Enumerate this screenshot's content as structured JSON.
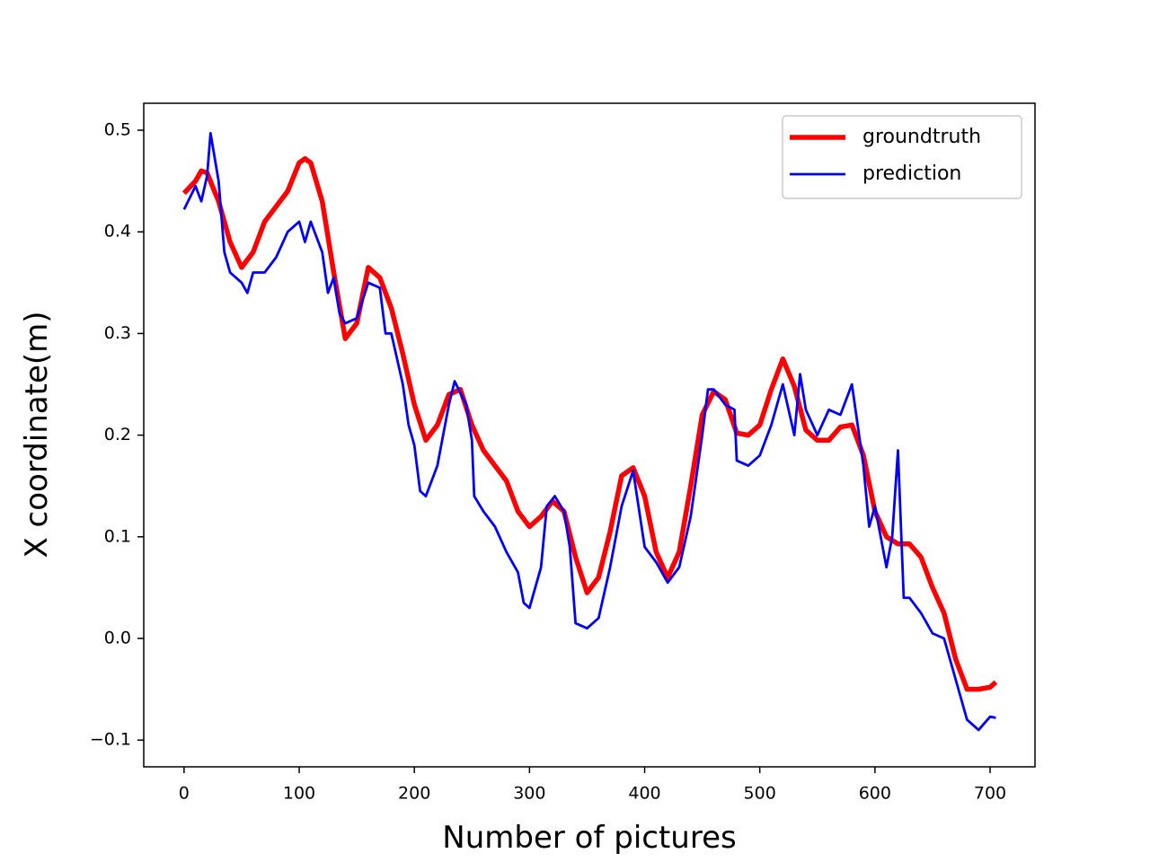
{
  "chart_data": {
    "type": "line",
    "xlabel": "Number of pictures",
    "ylabel": "X coordinate(m)",
    "xlim": [
      -35,
      739
    ],
    "ylim": [
      -0.1263,
      0.5265
    ],
    "xticks": [
      0,
      100,
      200,
      300,
      400,
      500,
      600,
      700
    ],
    "yticks": [
      {
        "value": -0.1,
        "label": "−0.1"
      },
      {
        "value": 0,
        "label": "0.0"
      },
      0.1,
      0.2,
      0.3,
      0.4,
      0.5
    ],
    "legend": "upper right",
    "series": [
      {
        "name": "groundtruth",
        "color": "#ff0000",
        "x": [
          0,
          10,
          15,
          20,
          30,
          40,
          50,
          60,
          70,
          80,
          90,
          100,
          105,
          110,
          120,
          130,
          140,
          150,
          160,
          170,
          180,
          190,
          200,
          210,
          220,
          230,
          240,
          250,
          260,
          270,
          280,
          290,
          300,
          310,
          320,
          330,
          340,
          350,
          360,
          370,
          380,
          390,
          400,
          410,
          420,
          430,
          440,
          450,
          460,
          470,
          480,
          490,
          500,
          510,
          520,
          530,
          540,
          550,
          560,
          570,
          580,
          590,
          600,
          610,
          620,
          630,
          640,
          650,
          660,
          670,
          680,
          690,
          700,
          705
        ],
        "values": [
          0.438,
          0.45,
          0.46,
          0.458,
          0.43,
          0.39,
          0.365,
          0.38,
          0.41,
          0.425,
          0.44,
          0.468,
          0.472,
          0.468,
          0.43,
          0.36,
          0.295,
          0.31,
          0.365,
          0.355,
          0.325,
          0.28,
          0.23,
          0.195,
          0.21,
          0.24,
          0.245,
          0.21,
          0.185,
          0.17,
          0.155,
          0.125,
          0.11,
          0.12,
          0.135,
          0.125,
          0.08,
          0.045,
          0.06,
          0.105,
          0.16,
          0.168,
          0.14,
          0.085,
          0.06,
          0.085,
          0.15,
          0.22,
          0.243,
          0.235,
          0.202,
          0.2,
          0.21,
          0.245,
          0.275,
          0.248,
          0.205,
          0.195,
          0.195,
          0.208,
          0.21,
          0.18,
          0.125,
          0.1,
          0.093,
          0.093,
          0.08,
          0.05,
          0.025,
          -0.02,
          -0.05,
          -0.05,
          -0.048,
          -0.043
        ]
      },
      {
        "name": "prediction",
        "color": "#0000ff",
        "x": [
          0,
          10,
          15,
          20,
          23,
          30,
          35,
          40,
          50,
          55,
          60,
          70,
          80,
          90,
          100,
          105,
          110,
          120,
          125,
          130,
          135,
          140,
          150,
          160,
          170,
          175,
          180,
          190,
          195,
          200,
          205,
          210,
          220,
          230,
          235,
          245,
          250,
          252,
          260,
          270,
          280,
          290,
          295,
          300,
          310,
          315,
          322,
          330,
          335,
          340,
          350,
          360,
          370,
          380,
          390,
          400,
          410,
          420,
          430,
          440,
          450,
          455,
          460,
          470,
          478,
          480,
          490,
          500,
          510,
          520,
          530,
          535,
          540,
          550,
          560,
          570,
          580,
          590,
          595,
          600,
          610,
          615,
          620,
          625,
          630,
          640,
          650,
          660,
          670,
          680,
          690,
          700,
          705
        ],
        "values": [
          0.422,
          0.445,
          0.43,
          0.455,
          0.497,
          0.45,
          0.38,
          0.36,
          0.35,
          0.34,
          0.36,
          0.36,
          0.375,
          0.4,
          0.41,
          0.39,
          0.41,
          0.38,
          0.34,
          0.355,
          0.32,
          0.31,
          0.315,
          0.35,
          0.345,
          0.3,
          0.3,
          0.25,
          0.21,
          0.19,
          0.145,
          0.14,
          0.17,
          0.23,
          0.253,
          0.23,
          0.195,
          0.14,
          0.125,
          0.11,
          0.085,
          0.065,
          0.035,
          0.03,
          0.07,
          0.13,
          0.14,
          0.125,
          0.09,
          0.015,
          0.01,
          0.02,
          0.07,
          0.13,
          0.165,
          0.09,
          0.075,
          0.055,
          0.07,
          0.12,
          0.2,
          0.245,
          0.245,
          0.23,
          0.225,
          0.175,
          0.17,
          0.18,
          0.21,
          0.25,
          0.2,
          0.26,
          0.225,
          0.2,
          0.225,
          0.22,
          0.25,
          0.17,
          0.11,
          0.13,
          0.07,
          0.1,
          0.185,
          0.04,
          0.04,
          0.025,
          0.005,
          0.0,
          -0.04,
          -0.08,
          -0.09,
          -0.077,
          -0.078
        ]
      }
    ]
  }
}
